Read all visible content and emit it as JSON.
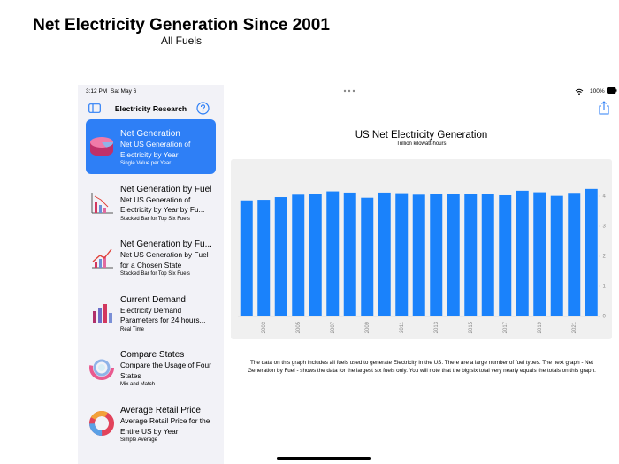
{
  "header": {
    "title": "Net Electricity Generation Since 2001",
    "subtitle": "All Fuels"
  },
  "status_bar": {
    "time": "3:12 PM",
    "date": "Sat May 6",
    "battery": "100%"
  },
  "sidebar": {
    "title": "Electricity Research",
    "items": [
      {
        "title": "Net Generation",
        "description": "Net US Generation of Electricity by Year",
        "note": "Single Value per Year"
      },
      {
        "title": "Net Generation by Fuel",
        "description": "Net US Generation of Electricity by Year by Fu...",
        "note": "Stacked Bar for Top Six Fuels"
      },
      {
        "title": "Net Generation by Fu...",
        "description": "Net US Generation by Fuel for a Chosen State",
        "note": "Stacked Bar for Top Six Fuels"
      },
      {
        "title": "Current Demand",
        "description": "Electricity Demand Parameters for 24 hours...",
        "note": "Real Time"
      },
      {
        "title": "Compare States",
        "description": "Compare the Usage of Four States",
        "note": "Mix and Match"
      },
      {
        "title": "Average Retail Price",
        "description": "Average Retail Price for the Entire US by Year",
        "note": "Simple Average"
      }
    ]
  },
  "chart_data": {
    "type": "bar",
    "title": "US Net Electricity Generation",
    "subtitle": "Trillion kilowatt-hours",
    "categories": [
      null,
      "2003",
      null,
      "2005",
      null,
      "2007",
      null,
      "2009",
      null,
      "2011",
      null,
      "2013",
      null,
      "2015",
      null,
      "2017",
      null,
      "2019",
      null,
      "2021",
      null
    ],
    "values": [
      3.86,
      3.88,
      3.97,
      4.05,
      4.06,
      4.16,
      4.12,
      3.95,
      4.12,
      4.1,
      4.05,
      4.07,
      4.08,
      4.08,
      4.08,
      4.03,
      4.18,
      4.13,
      4.01,
      4.11,
      4.24
    ],
    "color": "#1a82fb",
    "ylim": [
      0,
      4.4
    ],
    "yticks": [
      0,
      1,
      2,
      3,
      4
    ],
    "y_axis_side": "right",
    "grid": false
  },
  "footnote": "The data on this graph includes all fuels used to generate Electricity in the US. There are a large number of fuel types. The next graph - Net Generation by Fuel - shows the data for the largest six fuels only. You will note that the big six total very nearly equals the totals on this graph."
}
